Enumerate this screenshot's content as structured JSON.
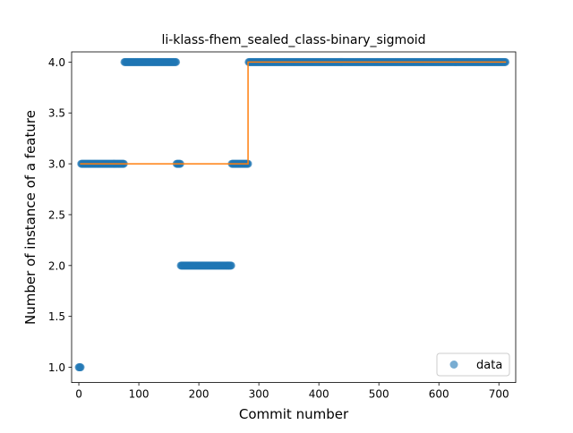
{
  "chart_data": {
    "type": "scatter",
    "title": "li-klass-fhem_sealed_class-binary_sigmoid",
    "xlabel": "Commit number",
    "ylabel": "Number of instance of a feature",
    "xlim": [
      -12,
      728
    ],
    "ylim": [
      0.85,
      4.1
    ],
    "xticks": [
      0,
      100,
      200,
      300,
      400,
      500,
      600,
      700
    ],
    "yticks": [
      1.0,
      1.5,
      2.0,
      2.5,
      3.0,
      3.5,
      4.0
    ],
    "ytick_labels": [
      "1.0",
      "1.5",
      "2.0",
      "2.5",
      "3.0",
      "3.5",
      "4.0"
    ],
    "legend": {
      "position": "bottom-right",
      "entries": [
        "data"
      ]
    },
    "grid": false,
    "series": [
      {
        "name": "data",
        "kind": "scatter",
        "color": "#1f77b4",
        "runs": [
          {
            "x_start": 0,
            "x_end": 4,
            "y": 1.0
          },
          {
            "x_start": 4,
            "x_end": 76,
            "y": 3.0
          },
          {
            "x_start": 76,
            "x_end": 163,
            "y": 4.0
          },
          {
            "x_start": 163,
            "x_end": 170,
            "y": 3.0
          },
          {
            "x_start": 170,
            "x_end": 255,
            "y": 2.0
          },
          {
            "x_start": 255,
            "x_end": 283,
            "y": 3.0
          },
          {
            "x_start": 283,
            "x_end": 712,
            "y": 4.0
          }
        ]
      },
      {
        "kind": "step-line",
        "color": "#ff7f0e",
        "points": [
          [
            2,
            3.0
          ],
          [
            282,
            3.0
          ],
          [
            282,
            4.0
          ],
          [
            712,
            4.0
          ]
        ]
      }
    ]
  }
}
